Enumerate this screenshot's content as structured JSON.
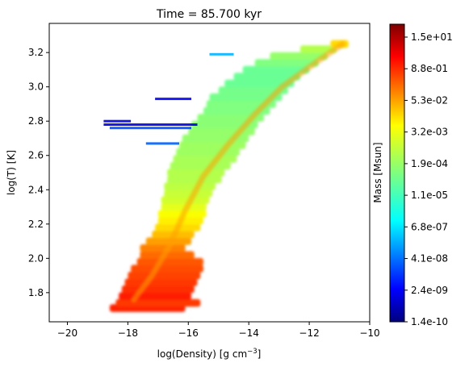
{
  "chart_data": {
    "type": "heatmap",
    "title": "Time = 85.700 kyr",
    "xlabel": "log(Density) [g cm",
    "xlabel_superscript": "−3",
    "xlabel_suffix": "]",
    "ylabel": "log(T) [K]",
    "xlim": [
      -20.6,
      -10.0
    ],
    "ylim": [
      1.63,
      3.37
    ],
    "x_ticks": [
      -20,
      -18,
      -16,
      -14,
      -12,
      -10
    ],
    "x_tick_labels": [
      "−20",
      "−18",
      "−16",
      "−14",
      "−12",
      "−10"
    ],
    "y_ticks": [
      1.8,
      2.0,
      2.2,
      2.4,
      2.6,
      2.8,
      3.0,
      3.2
    ],
    "y_tick_labels": [
      "1.8",
      "2.0",
      "2.2",
      "2.4",
      "2.6",
      "2.8",
      "3.0",
      "3.2"
    ],
    "colorbar": {
      "label": "Mass [Msun]",
      "scale": "log",
      "colormap": "jet",
      "tick_labels": [
        "1.4e-10",
        "2.4e-09",
        "4.1e-08",
        "6.8e-07",
        "1.1e-05",
        "1.9e-04",
        "3.2e-03",
        "5.3e-02",
        "8.8e-01",
        "1.5e+01"
      ]
    },
    "bands": [
      {
        "y": 1.71,
        "x_min": -18.6,
        "x_max": -16.1,
        "level": 0.84
      },
      {
        "y": 1.74,
        "x_min": -18.4,
        "x_max": -15.6,
        "level": 0.82
      },
      {
        "y": 1.78,
        "x_min": -18.3,
        "x_max": -15.9,
        "level": 0.85
      },
      {
        "y": 1.82,
        "x_min": -18.2,
        "x_max": -15.8,
        "level": 0.83
      },
      {
        "y": 1.86,
        "x_min": -18.1,
        "x_max": -15.7,
        "level": 0.82
      },
      {
        "y": 1.9,
        "x_min": -18.0,
        "x_max": -15.6,
        "level": 0.81
      },
      {
        "y": 1.94,
        "x_min": -17.9,
        "x_max": -15.5,
        "level": 0.8
      },
      {
        "y": 1.98,
        "x_min": -17.7,
        "x_max": -15.5,
        "level": 0.79
      },
      {
        "y": 2.02,
        "x_min": -17.6,
        "x_max": -15.8,
        "level": 0.77
      },
      {
        "y": 2.06,
        "x_min": -17.6,
        "x_max": -16.1,
        "level": 0.75
      },
      {
        "y": 2.1,
        "x_min": -17.4,
        "x_max": -15.9,
        "level": 0.72
      },
      {
        "y": 2.14,
        "x_min": -17.2,
        "x_max": -15.8,
        "level": 0.69
      },
      {
        "y": 2.18,
        "x_min": -17.1,
        "x_max": -15.6,
        "level": 0.66
      },
      {
        "y": 2.22,
        "x_min": -17.0,
        "x_max": -15.5,
        "level": 0.64
      },
      {
        "y": 2.26,
        "x_min": -17.0,
        "x_max": -15.4,
        "level": 0.62
      },
      {
        "y": 2.3,
        "x_min": -16.9,
        "x_max": -15.4,
        "level": 0.6
      },
      {
        "y": 2.34,
        "x_min": -16.9,
        "x_max": -15.3,
        "level": 0.58
      },
      {
        "y": 2.38,
        "x_min": -16.8,
        "x_max": -15.2,
        "level": 0.57
      },
      {
        "y": 2.42,
        "x_min": -16.8,
        "x_max": -15.1,
        "level": 0.56
      },
      {
        "y": 2.46,
        "x_min": -16.7,
        "x_max": -14.9,
        "level": 0.55
      },
      {
        "y": 2.5,
        "x_min": -16.7,
        "x_max": -14.8,
        "level": 0.55
      },
      {
        "y": 2.54,
        "x_min": -16.6,
        "x_max": -14.6,
        "level": 0.54
      },
      {
        "y": 2.58,
        "x_min": -16.5,
        "x_max": -14.4,
        "level": 0.54
      },
      {
        "y": 2.62,
        "x_min": -16.4,
        "x_max": -14.3,
        "level": 0.53
      },
      {
        "y": 2.66,
        "x_min": -16.3,
        "x_max": -14.1,
        "level": 0.53
      },
      {
        "y": 2.7,
        "x_min": -16.2,
        "x_max": -14.0,
        "level": 0.52
      },
      {
        "y": 2.74,
        "x_min": -16.0,
        "x_max": -13.8,
        "level": 0.52
      },
      {
        "y": 2.78,
        "x_min": -15.9,
        "x_max": -13.7,
        "level": 0.51
      },
      {
        "y": 2.82,
        "x_min": -15.7,
        "x_max": -13.5,
        "level": 0.51
      },
      {
        "y": 2.86,
        "x_min": -15.5,
        "x_max": -13.3,
        "level": 0.5
      },
      {
        "y": 2.9,
        "x_min": -15.4,
        "x_max": -13.1,
        "level": 0.5
      },
      {
        "y": 2.94,
        "x_min": -15.3,
        "x_max": -12.9,
        "level": 0.49
      },
      {
        "y": 2.98,
        "x_min": -15.0,
        "x_max": -12.7,
        "level": 0.49
      },
      {
        "y": 3.02,
        "x_min": -14.8,
        "x_max": -12.5,
        "level": 0.48
      },
      {
        "y": 3.06,
        "x_min": -14.5,
        "x_max": -12.3,
        "level": 0.48
      },
      {
        "y": 3.1,
        "x_min": -14.2,
        "x_max": -12.0,
        "level": 0.48
      },
      {
        "y": 3.14,
        "x_min": -13.8,
        "x_max": -11.7,
        "level": 0.5
      },
      {
        "y": 3.18,
        "x_min": -13.3,
        "x_max": -11.4,
        "level": 0.52
      },
      {
        "y": 3.22,
        "x_min": -12.3,
        "x_max": -11.1,
        "level": 0.55
      },
      {
        "y": 3.25,
        "x_min": -11.3,
        "x_max": -10.7,
        "level": 0.66
      }
    ],
    "ridge": [
      {
        "x": -17.8,
        "y": 1.76
      },
      {
        "x": -17.2,
        "y": 1.9
      },
      {
        "x": -16.6,
        "y": 2.08
      },
      {
        "x": -16.1,
        "y": 2.28
      },
      {
        "x": -15.5,
        "y": 2.48
      },
      {
        "x": -14.7,
        "y": 2.66
      },
      {
        "x": -13.8,
        "y": 2.84
      },
      {
        "x": -12.9,
        "y": 3.0
      },
      {
        "x": -11.8,
        "y": 3.14
      },
      {
        "x": -10.9,
        "y": 3.25
      }
    ],
    "streaks": [
      {
        "y": 2.78,
        "x_min": -18.8,
        "x_max": -15.7,
        "level": 0.1
      },
      {
        "y": 2.8,
        "x_min": -18.8,
        "x_max": -17.9,
        "level": 0.08
      },
      {
        "y": 2.76,
        "x_min": -18.6,
        "x_max": -15.9,
        "level": 0.2
      },
      {
        "y": 2.93,
        "x_min": -17.1,
        "x_max": -15.9,
        "level": 0.12
      },
      {
        "y": 2.67,
        "x_min": -17.4,
        "x_max": -16.3,
        "level": 0.22
      },
      {
        "y": 3.19,
        "x_min": -15.3,
        "x_max": -14.5,
        "level": 0.3
      }
    ]
  }
}
